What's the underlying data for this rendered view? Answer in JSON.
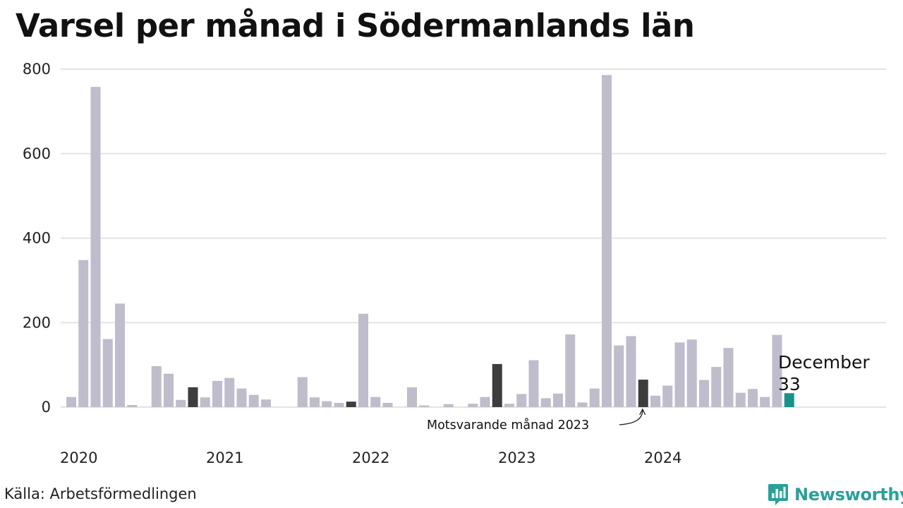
{
  "title": "Varsel per månad i Södermanlands län",
  "source": "Källa: Arbetsförmedlingen",
  "brand": {
    "name": "Newsworthy",
    "icon": "newsworthy-logo-icon",
    "color": "#2aa198"
  },
  "colors": {
    "bar": "#bfbccb",
    "highlight": "#3d3d3d",
    "current": "#1a9188",
    "grid": "#e3e3e3"
  },
  "chart_data": {
    "type": "bar",
    "title": "Varsel per månad i Södermanlands län",
    "xlabel": "",
    "ylabel": "",
    "ylim": [
      0,
      800
    ],
    "yticks": [
      0,
      200,
      400,
      600,
      800
    ],
    "grid": true,
    "x_tick_labels": [
      {
        "label": "2020",
        "index": 0
      },
      {
        "label": "2021",
        "index": 12
      },
      {
        "label": "2022",
        "index": 24
      },
      {
        "label": "2023",
        "index": 36
      },
      {
        "label": "2024",
        "index": 48
      }
    ],
    "categories": [
      "2020-01",
      "2020-02",
      "2020-03",
      "2020-04",
      "2020-05",
      "2020-06",
      "2020-07",
      "2020-08",
      "2020-09",
      "2020-10",
      "2020-11",
      "2020-12",
      "2021-01",
      "2021-02",
      "2021-03",
      "2021-04",
      "2021-05",
      "2021-06",
      "2021-07",
      "2021-08",
      "2021-09",
      "2021-10",
      "2021-11",
      "2021-12",
      "2022-01",
      "2022-02",
      "2022-03",
      "2022-04",
      "2022-05",
      "2022-06",
      "2022-07",
      "2022-08",
      "2022-09",
      "2022-10",
      "2022-11",
      "2022-12",
      "2023-01",
      "2023-02",
      "2023-03",
      "2023-04",
      "2023-05",
      "2023-06",
      "2023-07",
      "2023-08",
      "2023-09",
      "2023-10",
      "2023-11",
      "2023-12",
      "2024-01",
      "2024-02",
      "2024-03",
      "2024-04",
      "2024-05",
      "2024-06",
      "2024-07",
      "2024-08",
      "2024-09",
      "2024-10",
      "2024-11",
      "2024-12"
    ],
    "values": [
      24,
      348,
      758,
      161,
      245,
      5,
      0,
      97,
      79,
      17,
      47,
      23,
      62,
      69,
      44,
      29,
      18,
      0,
      0,
      71,
      23,
      14,
      10,
      13,
      221,
      24,
      10,
      0,
      47,
      4,
      0,
      7,
      0,
      8,
      24,
      102,
      8,
      31,
      111,
      21,
      32,
      172,
      11,
      44,
      786,
      146,
      168,
      65,
      27,
      51,
      153,
      160,
      64,
      95,
      140,
      34,
      43,
      24,
      171,
      33
    ],
    "highlighted_indices": [
      10,
      23,
      35,
      47
    ],
    "current_index": 59,
    "annotations": [
      {
        "text": "Motsvarande månad 2023",
        "target_index": 47
      },
      {
        "text": "December",
        "value_text": "33",
        "target_index": 59
      }
    ]
  }
}
